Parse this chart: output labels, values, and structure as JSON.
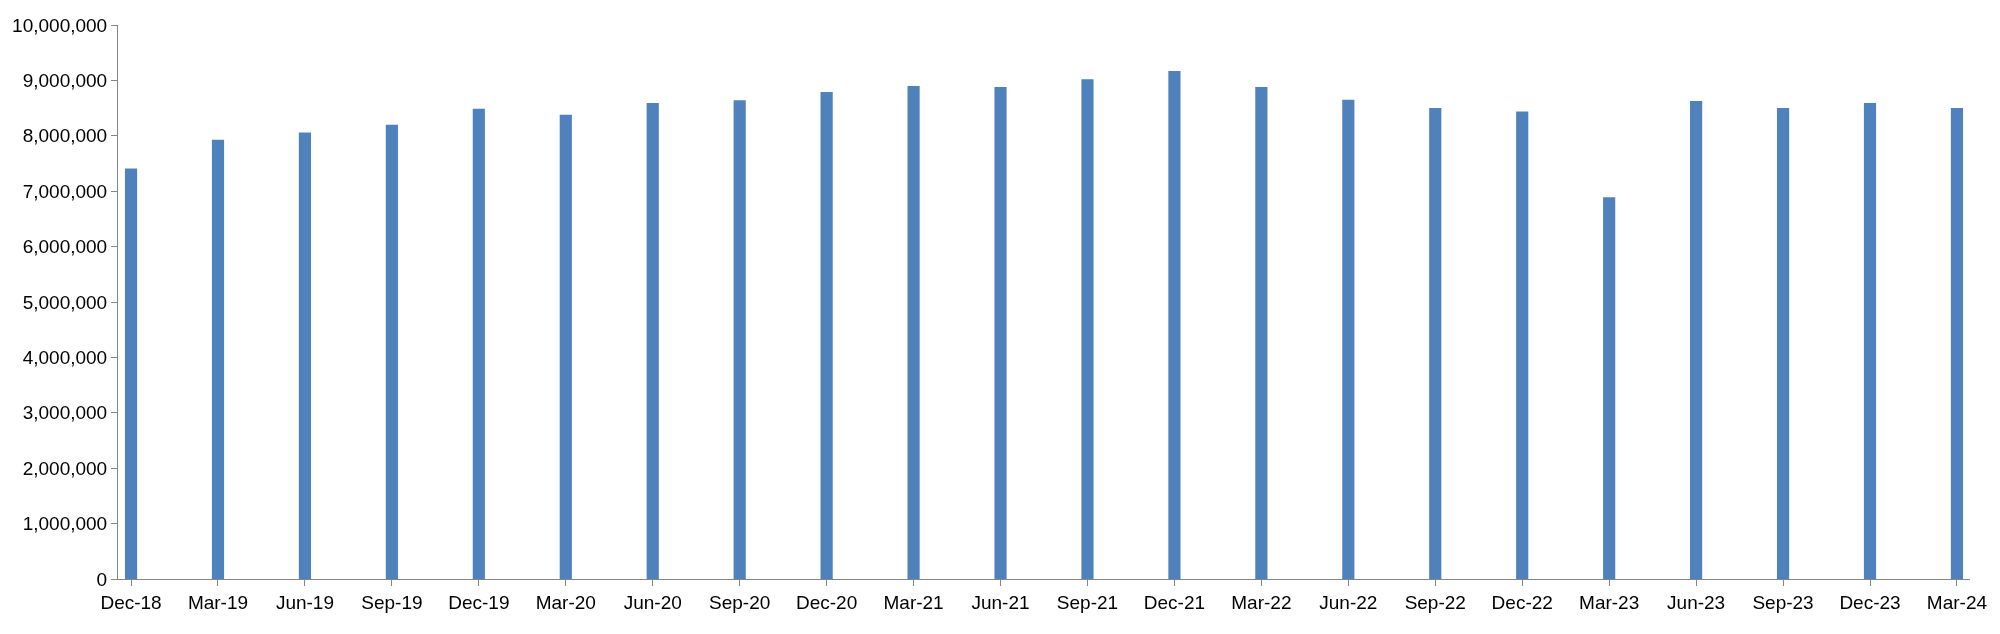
{
  "chart_data": {
    "type": "bar",
    "categories": [
      "Dec-18",
      "Mar-19",
      "Jun-19",
      "Sep-19",
      "Dec-19",
      "Mar-20",
      "Jun-20",
      "Sep-20",
      "Dec-20",
      "Mar-21",
      "Jun-21",
      "Sep-21",
      "Dec-21",
      "Mar-22",
      "Jun-22",
      "Sep-22",
      "Dec-22",
      "Mar-23",
      "Jun-23",
      "Sep-23",
      "Dec-23",
      "Mar-24"
    ],
    "values": [
      7410000,
      7930000,
      8060000,
      8200000,
      8490000,
      8380000,
      8590000,
      8640000,
      8790000,
      8900000,
      8880000,
      9020000,
      9170000,
      8880000,
      8650000,
      8500000,
      8440000,
      6890000,
      8630000,
      8500000,
      8590000,
      8500000
    ],
    "color": "#4f81bd",
    "ylim": [
      0,
      10000000
    ],
    "yticks": [
      {
        "value": 0,
        "label": "0"
      },
      {
        "value": 1000000,
        "label": "1,000,000"
      },
      {
        "value": 2000000,
        "label": "2,000,000"
      },
      {
        "value": 3000000,
        "label": "3,000,000"
      },
      {
        "value": 4000000,
        "label": "4,000,000"
      },
      {
        "value": 5000000,
        "label": "5,000,000"
      },
      {
        "value": 6000000,
        "label": "6,000,000"
      },
      {
        "value": 7000000,
        "label": "7,000,000"
      },
      {
        "value": 8000000,
        "label": "8,000,000"
      },
      {
        "value": 9000000,
        "label": "9,000,000"
      },
      {
        "value": 10000000,
        "label": "10,000,000"
      }
    ]
  }
}
